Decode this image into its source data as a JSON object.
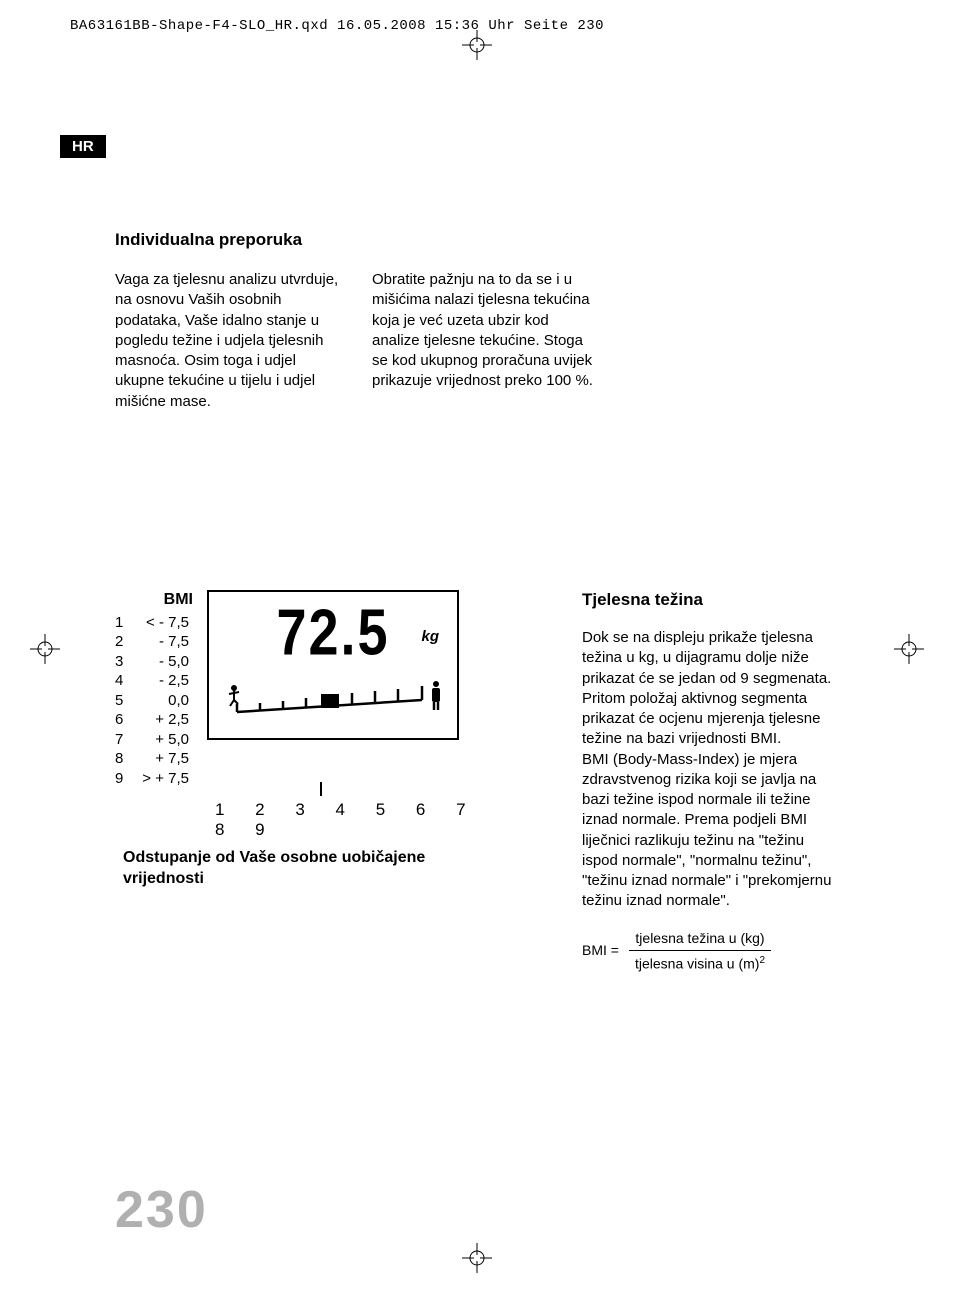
{
  "header": "BA63161BB-Shape-F4-SLO_HR.qxd  16.05.2008  15:36 Uhr  Seite 230",
  "lang_badge": "HR",
  "section1": {
    "title": "Individualna preporuka",
    "col1": "Vaga za tjelesnu analizu utvrduje, na osnovu Vaših osobnih podataka, Vaše idalno stanje u pogledu težine i udjela tjelesnih masnoća. Osim toga i udjel ukupne tekućine u tijelu i udjel mišićne mase.",
    "col2": "Obratite pažnju na to da se i u mišićima nalazi tjelesna tekućina koja je već uzeta ubzir kod analize tjelesne tekućine. Stoga se kod ukupnog proračuna uvijek prikazuje vrijednost preko 100 %."
  },
  "bmi_table": {
    "header": "BMI",
    "rows": [
      {
        "idx": "1",
        "val": "< - 7,5"
      },
      {
        "idx": "2",
        "val": "- 7,5"
      },
      {
        "idx": "3",
        "val": "- 5,0"
      },
      {
        "idx": "4",
        "val": "- 2,5"
      },
      {
        "idx": "5",
        "val": "0,0"
      },
      {
        "idx": "6",
        "val": "+ 2,5"
      },
      {
        "idx": "7",
        "val": "+ 5,0"
      },
      {
        "idx": "8",
        "val": "+ 7,5"
      },
      {
        "idx": "9",
        "val": "> + 7,5"
      }
    ]
  },
  "display": {
    "weight": "72.5",
    "unit": "kg",
    "segments": [
      1,
      2,
      3,
      4,
      5,
      6,
      7,
      8,
      9
    ],
    "active_segment": 5
  },
  "scale_numbers": "1 2 3 4 5 6 7 8 9",
  "offset_title": "Odstupanje od Vaše osobne uobičajene vrijednosti",
  "right": {
    "title": "Tjelesna težina",
    "body": "Dok se na displeju prikaže tjelesna težina u kg, u dijagramu dolje niže prikazat će se jedan od 9 segmenata.\nPritom položaj aktivnog segmenta prikazat će ocjenu mjerenja tjelesne težine na bazi vrijednosti BMI.\nBMI (Body-Mass-Index) je mjera zdravstvenog rizika koji se javlja na bazi težine ispod normale ili težine iznad normale. Prema podjeli BMI liječnici razlikuju težinu na \"težinu ispod normale\", \"normalnu težinu\", \"težinu iznad normale\" i \"prekomjernu težinu iznad normale\"."
  },
  "formula": {
    "label": "BMI =",
    "top": "tjelesna težina u (kg)",
    "bot_pre": "tjelesna visina u (m)",
    "bot_sup": "2"
  },
  "page_number": "230",
  "colors": {
    "text": "#000000",
    "page_number": "#b0b0b0",
    "background": "#ffffff"
  }
}
